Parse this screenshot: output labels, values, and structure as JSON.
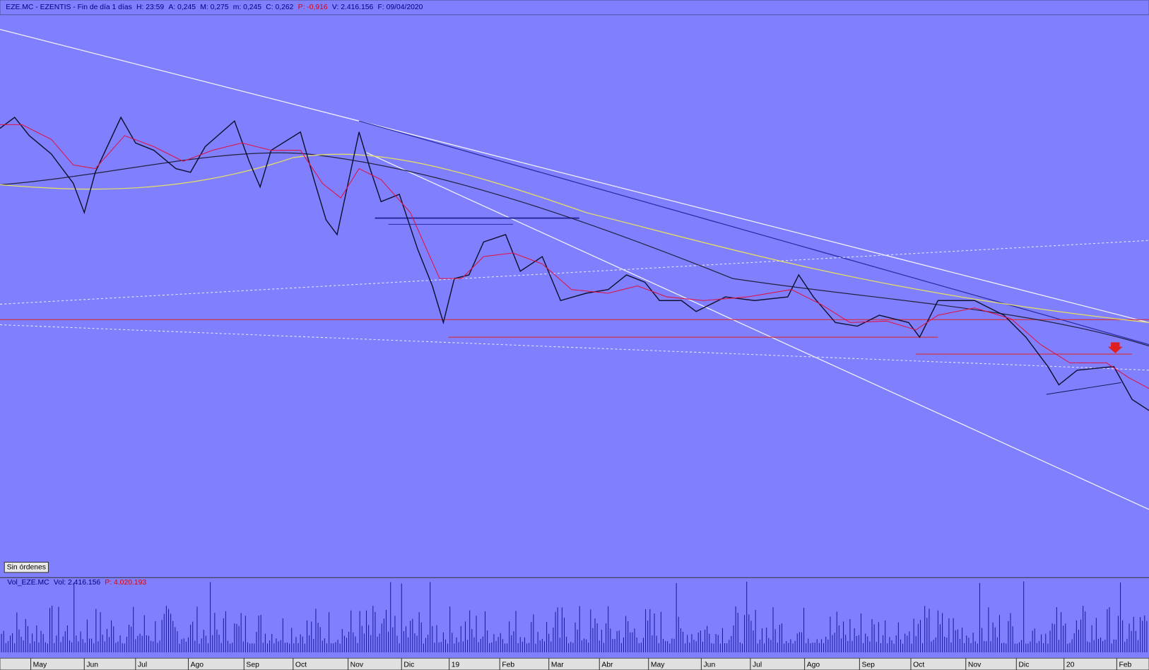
{
  "header": {
    "symbol": "EZE.MC - EZENTIS - Fin de día 1 días",
    "fields": [
      "H: 23:59",
      "A: 0,245",
      "M: 0,275",
      "m: 0,245",
      "C: 0,262"
    ],
    "change": "P: -0,916",
    "volume": "V: 2.416.156",
    "date": "F: 09/04/2020"
  },
  "orders_button": "Sin órdenes",
  "volume_panel": {
    "name": "Vol_EZE.MC",
    "vol": "Vol: 2.416.156",
    "avg": "P: 4.020.193"
  },
  "time_axis": [
    "May",
    "Jun",
    "Jul",
    "Ago",
    "Sep",
    "Oct",
    "Nov",
    "Dic",
    "19",
    "Feb",
    "Mar",
    "Abr",
    "May",
    "Jun",
    "Jul",
    "Ago",
    "Sep",
    "Oct",
    "Nov",
    "Dic",
    "20",
    "Feb"
  ]
}
